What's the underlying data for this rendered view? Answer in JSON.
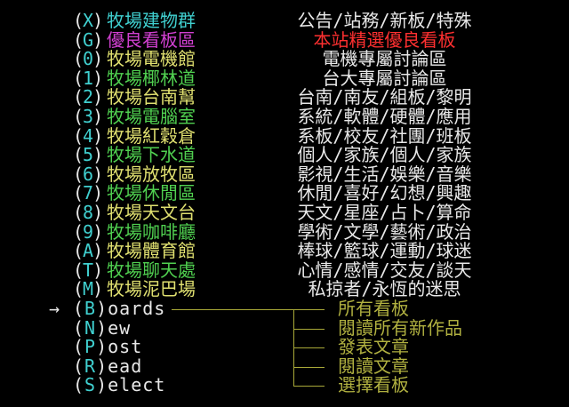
{
  "colors": {
    "key": "#40d0d0",
    "paren": "#e8e8e8",
    "desc": "#e8e8e8",
    "highlight": "#ff3030",
    "tree": "#a8a838",
    "submenu": "#b0b040"
  },
  "boards": [
    {
      "key": "X",
      "name": "牧場建物群",
      "desc": "公告/站務/新板/特殊",
      "color": "cyan"
    },
    {
      "key": "G",
      "name": "優良看板區",
      "desc": "本站精選優良看板",
      "color": "magenta",
      "desc_color": "red"
    },
    {
      "key": "0",
      "name": "牧場電機館",
      "desc": "電機專屬討論區",
      "color": "yellow"
    },
    {
      "key": "1",
      "name": "牧場椰林道",
      "desc": "台大專屬討論區",
      "color": "green"
    },
    {
      "key": "2",
      "name": "牧場台南幫",
      "desc": "台南/南友/組板/黎明",
      "color": "yellow"
    },
    {
      "key": "3",
      "name": "牧場電腦室",
      "desc": "系統/軟體/硬體/應用",
      "color": "green"
    },
    {
      "key": "4",
      "name": "牧場紅穀倉",
      "desc": "系板/校友/社團/班板",
      "color": "yellow"
    },
    {
      "key": "5",
      "name": "牧場下水道",
      "desc": "個人/家族/個人/家族",
      "color": "green"
    },
    {
      "key": "6",
      "name": "牧場放牧區",
      "desc": "影視/生活/娛樂/音樂",
      "color": "yellow"
    },
    {
      "key": "7",
      "name": "牧場休閒區",
      "desc": "休閒/喜好/幻想/興趣",
      "color": "green"
    },
    {
      "key": "8",
      "name": "牧場天文台",
      "desc": "天文/星座/占卜/算命",
      "color": "yellow"
    },
    {
      "key": "9",
      "name": "牧場咖啡廳",
      "desc": "學術/文學/藝術/政治",
      "color": "green"
    },
    {
      "key": "A",
      "name": "牧場體育館",
      "desc": "棒球/籃球/運動/球迷",
      "color": "yellow"
    },
    {
      "key": "T",
      "name": "牧場聊天處",
      "desc": "心情/感情/交友/談天",
      "color": "green"
    },
    {
      "key": "M",
      "name": "牧場泥巴場",
      "desc": "私掠者/永恆的迷思",
      "color": "yellow"
    }
  ],
  "cursor": "→",
  "commands": [
    {
      "key": "B",
      "rest": "oards",
      "sub": "所有看板",
      "selected": true
    },
    {
      "key": "N",
      "rest": "ew",
      "sub": "閱讀所有新作品"
    },
    {
      "key": "P",
      "rest": "ost",
      "sub": "發表文章"
    },
    {
      "key": "R",
      "rest": "ead",
      "sub": "閱讀文章"
    },
    {
      "key": "S",
      "rest": "elect",
      "sub": "選擇看板"
    }
  ]
}
